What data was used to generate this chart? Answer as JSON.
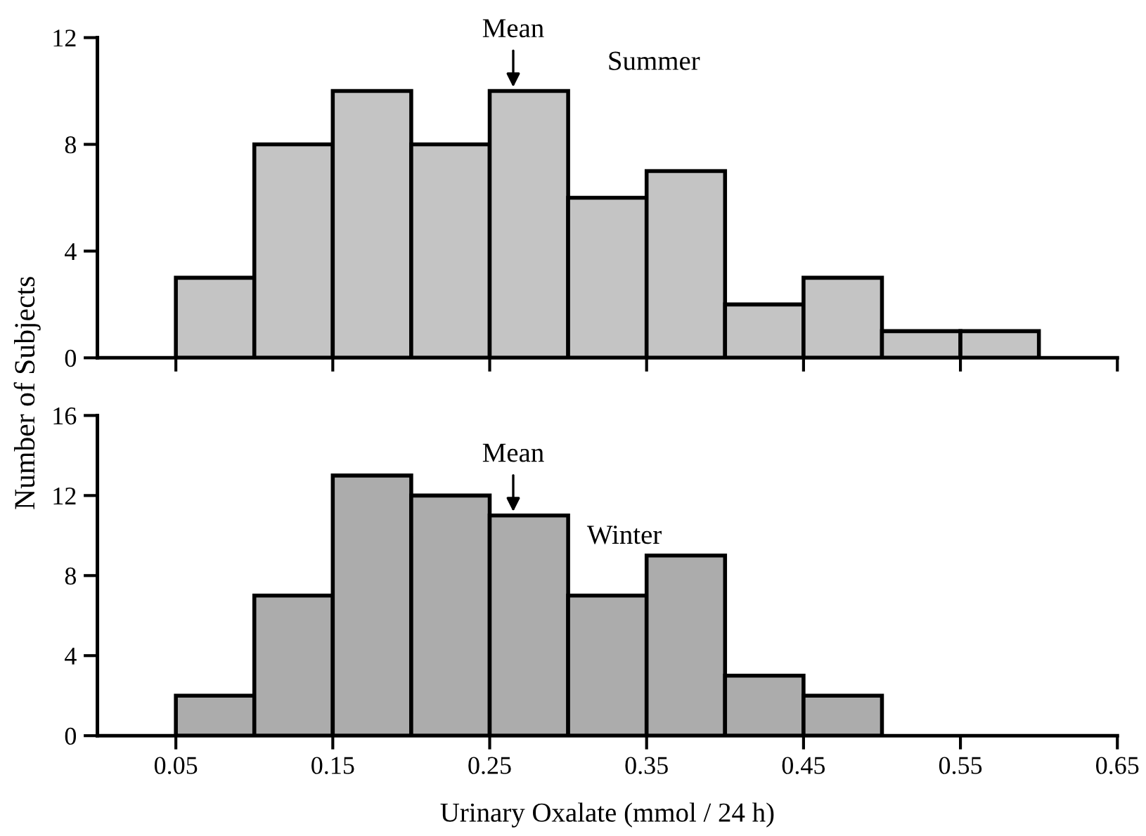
{
  "chart_data": [
    {
      "type": "histogram",
      "title": "Summer",
      "ylabel": "Number of Subjects",
      "bins": [
        0.05,
        0.1,
        0.15,
        0.2,
        0.25,
        0.3,
        0.35,
        0.4,
        0.45,
        0.5,
        0.55,
        0.6
      ],
      "values": [
        3,
        8,
        10,
        8,
        10,
        6,
        7,
        2,
        3,
        1,
        1
      ],
      "color": "#c4c4c4",
      "xlim": [
        0,
        0.65
      ],
      "xticks": [
        {
          "value": 0.05,
          "label": null
        },
        {
          "value": 0.15,
          "label": null
        },
        {
          "value": 0.25,
          "label": null
        },
        {
          "value": 0.35,
          "label": null
        },
        {
          "value": 0.45,
          "label": null
        },
        {
          "value": 0.55,
          "label": null
        },
        {
          "value": 0.65,
          "label": null
        }
      ],
      "ylim": [
        0,
        12
      ],
      "yticks": [
        0,
        4,
        8,
        12
      ],
      "tick_labels": "y",
      "grid": false,
      "legend": false,
      "annotations": [
        {
          "text": "Mean",
          "x": 0.265,
          "y": 10
        }
      ]
    },
    {
      "type": "histogram",
      "title": "Winter",
      "xlabel": "Urinary Oxalate (mmol / 24 h)",
      "bins": [
        0.05,
        0.1,
        0.15,
        0.2,
        0.25,
        0.3,
        0.35,
        0.4,
        0.45,
        0.5
      ],
      "values": [
        2,
        7,
        13,
        12,
        11,
        7,
        9,
        3,
        2
      ],
      "color": "#acacac",
      "xlim": [
        0,
        0.65
      ],
      "xticks": [
        {
          "value": 0.05,
          "label": "0.05"
        },
        {
          "value": 0.15,
          "label": "0.15"
        },
        {
          "value": 0.25,
          "label": "0.25"
        },
        {
          "value": 0.35,
          "label": "0.35"
        },
        {
          "value": 0.45,
          "label": "0.45"
        },
        {
          "value": 0.55,
          "label": "0.55"
        },
        {
          "value": 0.65,
          "label": "0.65"
        }
      ],
      "ylim": [
        0,
        16
      ],
      "yticks": [
        0,
        4,
        8,
        12,
        16
      ],
      "grid": false,
      "legend": false,
      "annotations": [
        {
          "text": "Mean",
          "x": 0.265,
          "y": 11
        }
      ]
    }
  ]
}
